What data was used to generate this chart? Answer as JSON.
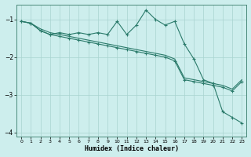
{
  "xlabel": "Humidex (Indice chaleur)",
  "background_color": "#cdeeed",
  "grid_color": "#a8d4d0",
  "line_color": "#2a7a6a",
  "xlim": [
    -0.5,
    23.5
  ],
  "ylim": [
    -4.1,
    -0.6
  ],
  "yticks": [
    -4,
    -3,
    -2,
    -1
  ],
  "xticks": [
    0,
    1,
    2,
    3,
    4,
    5,
    6,
    7,
    8,
    9,
    10,
    11,
    12,
    13,
    14,
    15,
    16,
    17,
    18,
    19,
    20,
    21,
    22,
    23
  ],
  "line1_x": [
    0,
    1,
    2,
    3,
    4,
    5,
    6,
    7,
    8,
    9,
    10,
    11,
    12,
    13,
    14,
    15,
    16,
    17,
    18,
    19,
    20,
    21,
    22,
    23
  ],
  "line1_y": [
    -1.05,
    -1.1,
    -1.3,
    -1.4,
    -1.35,
    -1.4,
    -1.35,
    -1.4,
    -1.35,
    -1.4,
    -1.05,
    -1.4,
    -1.15,
    -0.75,
    -1.0,
    -1.15,
    -1.05,
    -1.65,
    -2.05,
    -2.6,
    -2.7,
    -3.45,
    -3.6,
    -3.75
  ],
  "line2_x": [
    0,
    1,
    2,
    3,
    4,
    5,
    6,
    7,
    8,
    9,
    10,
    11,
    12,
    13,
    14,
    15,
    16,
    17,
    18,
    19,
    20,
    21,
    22,
    23
  ],
  "line2_y": [
    -1.05,
    -1.1,
    -1.3,
    -1.4,
    -1.45,
    -1.5,
    -1.55,
    -1.6,
    -1.65,
    -1.7,
    -1.75,
    -1.8,
    -1.85,
    -1.9,
    -1.95,
    -2.0,
    -2.1,
    -2.6,
    -2.65,
    -2.7,
    -2.75,
    -2.8,
    -2.9,
    -2.65
  ],
  "line3_x": [
    0,
    1,
    2,
    3,
    4,
    5,
    6,
    7,
    8,
    9,
    10,
    11,
    12,
    13,
    14,
    15,
    16,
    17,
    18,
    19,
    20,
    21,
    22,
    23
  ],
  "line3_y": [
    -1.05,
    -1.1,
    -1.25,
    -1.35,
    -1.4,
    -1.45,
    -1.5,
    -1.55,
    -1.6,
    -1.65,
    -1.7,
    -1.75,
    -1.8,
    -1.85,
    -1.9,
    -1.95,
    -2.05,
    -2.55,
    -2.6,
    -2.65,
    -2.7,
    -2.75,
    -2.85,
    -2.6
  ]
}
